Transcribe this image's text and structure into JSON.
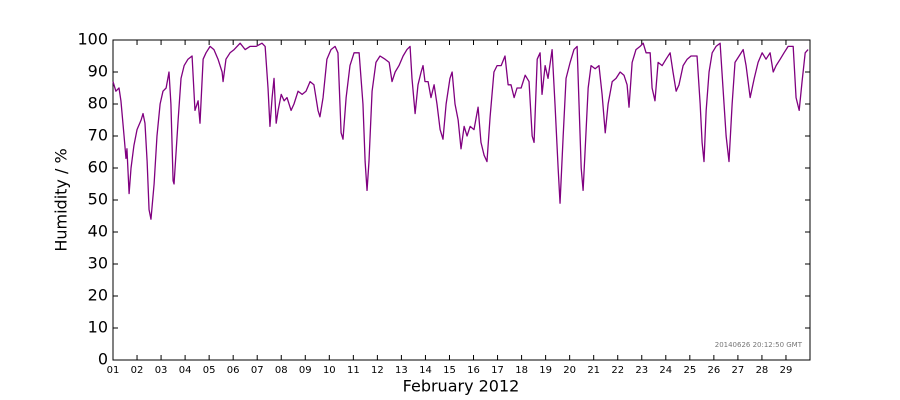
{
  "chart_data": {
    "type": "line",
    "ylabel": "Humidity / %",
    "xlabel": "February 2012",
    "annotation": "20140626 20:12:50 GMT",
    "color": "#800080",
    "xlim": [
      1,
      30
    ],
    "ylim": [
      0,
      100
    ],
    "yticks": [
      0,
      10,
      20,
      30,
      40,
      50,
      60,
      70,
      80,
      90,
      100
    ],
    "xticks": [
      {
        "value": 1,
        "label": "01"
      },
      {
        "value": 2,
        "label": "02"
      },
      {
        "value": 3,
        "label": "03"
      },
      {
        "value": 4,
        "label": "04"
      },
      {
        "value": 5,
        "label": "05"
      },
      {
        "value": 6,
        "label": "06"
      },
      {
        "value": 7,
        "label": "07"
      },
      {
        "value": 8,
        "label": "08"
      },
      {
        "value": 9,
        "label": "09"
      },
      {
        "value": 10,
        "label": "10"
      },
      {
        "value": 11,
        "label": "11"
      },
      {
        "value": 12,
        "label": "12"
      },
      {
        "value": 13,
        "label": "13"
      },
      {
        "value": 14,
        "label": "14"
      },
      {
        "value": 15,
        "label": "15"
      },
      {
        "value": 16,
        "label": "16"
      },
      {
        "value": 17,
        "label": "17"
      },
      {
        "value": 18,
        "label": "18"
      },
      {
        "value": 19,
        "label": "19"
      },
      {
        "value": 20,
        "label": "20"
      },
      {
        "value": 21,
        "label": "21"
      },
      {
        "value": 22,
        "label": "22"
      },
      {
        "value": 23,
        "label": "23"
      },
      {
        "value": 24,
        "label": "24"
      },
      {
        "value": 25,
        "label": "25"
      },
      {
        "value": 26,
        "label": "26"
      },
      {
        "value": 27,
        "label": "27"
      },
      {
        "value": 28,
        "label": "28"
      },
      {
        "value": 29,
        "label": "29"
      }
    ],
    "x": [
      1.0,
      1.12,
      1.25,
      1.33,
      1.46,
      1.54,
      1.58,
      1.67,
      1.75,
      1.87,
      2.0,
      2.17,
      2.25,
      2.33,
      2.42,
      2.5,
      2.58,
      2.71,
      2.83,
      2.96,
      3.08,
      3.21,
      3.33,
      3.41,
      3.5,
      3.54,
      3.71,
      3.83,
      3.96,
      4.12,
      4.29,
      4.41,
      4.54,
      4.62,
      4.75,
      4.87,
      5.04,
      5.2,
      5.37,
      5.54,
      5.58,
      5.7,
      5.87,
      6.04,
      6.29,
      6.5,
      6.7,
      6.95,
      7.2,
      7.33,
      7.45,
      7.53,
      7.62,
      7.7,
      7.79,
      7.87,
      8.0,
      8.12,
      8.24,
      8.41,
      8.53,
      8.7,
      8.87,
      9.03,
      9.2,
      9.36,
      9.53,
      9.61,
      9.74,
      9.9,
      10.07,
      10.24,
      10.36,
      10.49,
      10.57,
      10.7,
      10.86,
      11.03,
      11.24,
      11.4,
      11.49,
      11.57,
      11.65,
      11.78,
      11.94,
      12.11,
      12.32,
      12.49,
      12.61,
      12.74,
      12.9,
      13.07,
      13.23,
      13.36,
      13.44,
      13.57,
      13.69,
      13.82,
      13.9,
      13.98,
      14.11,
      14.23,
      14.36,
      14.48,
      14.61,
      14.73,
      14.86,
      15.02,
      15.11,
      15.23,
      15.36,
      15.48,
      15.61,
      15.73,
      15.86,
      16.02,
      16.19,
      16.31,
      16.44,
      16.56,
      16.69,
      16.85,
      16.98,
      17.15,
      17.31,
      17.44,
      17.56,
      17.69,
      17.81,
      17.98,
      18.15,
      18.31,
      18.44,
      18.52,
      18.65,
      18.77,
      18.85,
      18.98,
      19.1,
      19.27,
      19.39,
      19.52,
      19.6,
      19.73,
      19.85,
      20.02,
      20.18,
      20.31,
      20.39,
      20.48,
      20.56,
      20.64,
      20.77,
      20.89,
      21.06,
      21.22,
      21.35,
      21.48,
      21.6,
      21.77,
      21.93,
      22.1,
      22.26,
      22.39,
      22.47,
      22.6,
      22.76,
      22.93,
      23.06,
      23.18,
      23.35,
      23.43,
      23.55,
      23.68,
      23.85,
      24.01,
      24.18,
      24.3,
      24.43,
      24.55,
      24.72,
      24.89,
      25.05,
      25.3,
      25.43,
      25.51,
      25.59,
      25.68,
      25.8,
      25.93,
      26.09,
      26.26,
      26.38,
      26.51,
      26.63,
      26.76,
      26.88,
      27.05,
      27.22,
      27.34,
      27.51,
      27.68,
      27.84,
      28.01,
      28.17,
      28.34,
      28.47,
      28.59,
      28.76,
      28.92,
      29.09,
      29.3,
      29.42,
      29.55,
      29.67,
      29.8,
      29.92
    ],
    "values": [
      87,
      84,
      85,
      81,
      70,
      63,
      66,
      52,
      60,
      67,
      72,
      75,
      77,
      74,
      62,
      47,
      44,
      55,
      70,
      80,
      84,
      85,
      90,
      80,
      56,
      55,
      75,
      88,
      92,
      94,
      95,
      78,
      81,
      74,
      94,
      96,
      98,
      97,
      94,
      90,
      87,
      94,
      96,
      97,
      99,
      97,
      98,
      98,
      99,
      98,
      85,
      73,
      82,
      88,
      74,
      78,
      83,
      81,
      82,
      78,
      80,
      84,
      83,
      84,
      87,
      86,
      78,
      76,
      82,
      94,
      97,
      98,
      96,
      71,
      69,
      82,
      92,
      96,
      96,
      80,
      62,
      53,
      62,
      84,
      93,
      95,
      94,
      93,
      87,
      90,
      92,
      95,
      97,
      98,
      88,
      77,
      86,
      90,
      92,
      87,
      87,
      82,
      86,
      80,
      72,
      69,
      80,
      88,
      90,
      80,
      75,
      66,
      73,
      70,
      73,
      72,
      79,
      68,
      64,
      62,
      76,
      90,
      92,
      92,
      95,
      86,
      86,
      82,
      85,
      85,
      89,
      87,
      70,
      68,
      94,
      96,
      83,
      92,
      88,
      97,
      80,
      60,
      49,
      70,
      88,
      93,
      97,
      98,
      80,
      60,
      53,
      65,
      85,
      92,
      91,
      92,
      83,
      71,
      80,
      87,
      88,
      90,
      89,
      86,
      79,
      93,
      97,
      98,
      99,
      96,
      96,
      85,
      81,
      93,
      92,
      94,
      96,
      90,
      84,
      86,
      92,
      94,
      95,
      95,
      80,
      68,
      62,
      78,
      90,
      96,
      98,
      99,
      85,
      70,
      62,
      80,
      93,
      95,
      97,
      92,
      82,
      88,
      93,
      96,
      94,
      96,
      90,
      92,
      94,
      96,
      98,
      98,
      82,
      78,
      87,
      96,
      97
    ]
  }
}
